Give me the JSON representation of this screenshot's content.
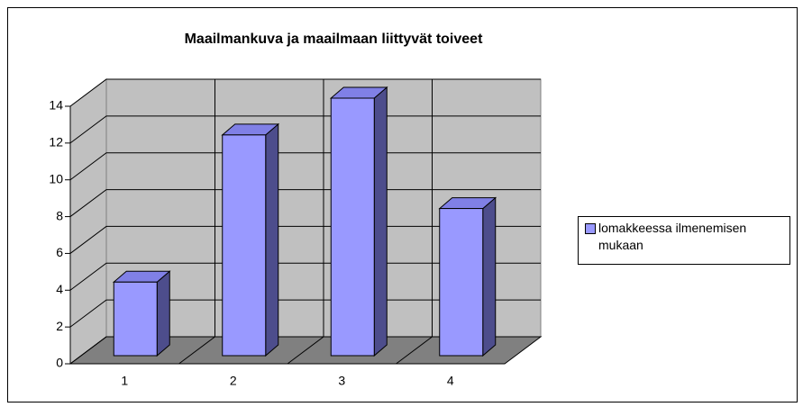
{
  "chart_data": {
    "type": "bar3d",
    "title": "Maailmankuva ja maailmaan liittyvät toiveet",
    "categories": [
      "1",
      "2",
      "3",
      "4"
    ],
    "series": [
      {
        "name": "lomakkeessa ilmenemisen mukaan",
        "color": "#9999ff",
        "values": [
          4,
          12,
          14,
          8
        ]
      }
    ],
    "ylim": [
      0,
      14
    ],
    "yticks": [
      0,
      2,
      4,
      6,
      8,
      10,
      12,
      14
    ],
    "grid": true,
    "legend": "right"
  }
}
